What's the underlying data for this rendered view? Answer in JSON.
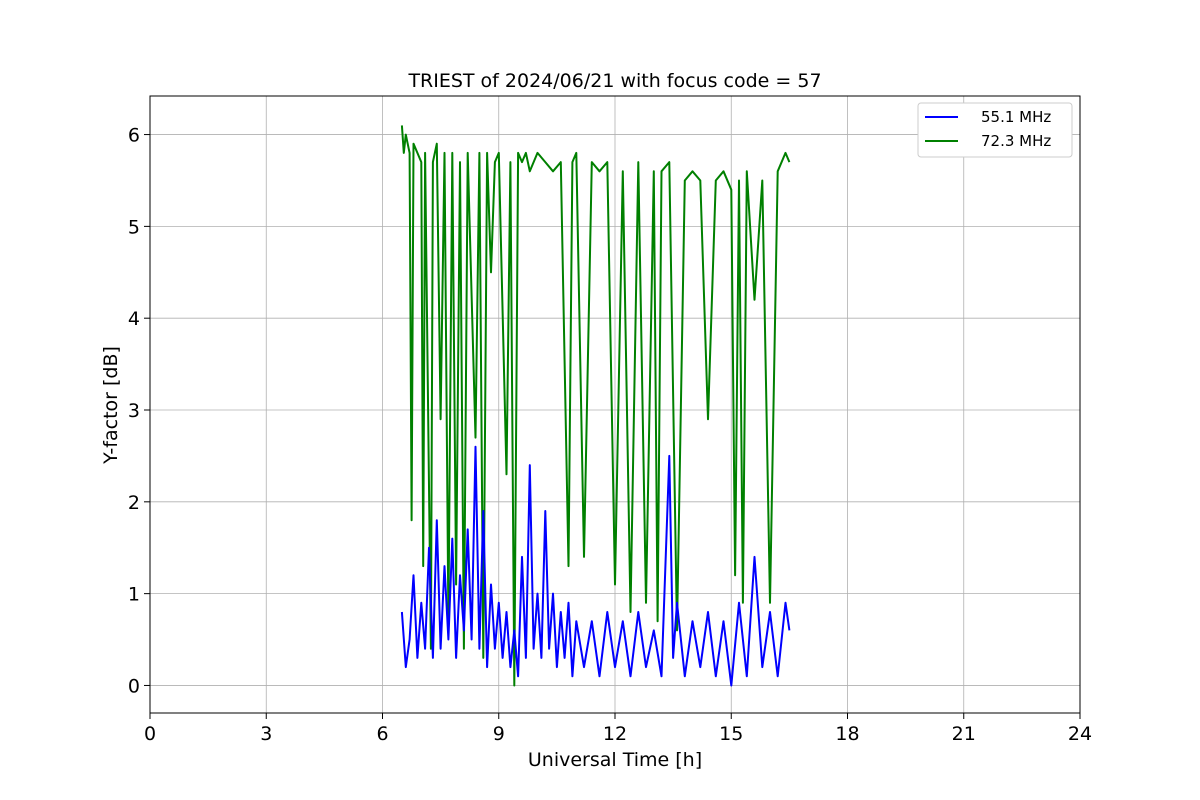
{
  "chart_data": {
    "type": "line",
    "title": "TRIEST of 2024/06/21 with focus code = 57",
    "xlabel": "Universal Time [h]",
    "ylabel": "Y-factor [dB]",
    "xlim": [
      0,
      24
    ],
    "ylim": [
      -0.3,
      6.42
    ],
    "xticks": [
      0,
      3,
      6,
      9,
      12,
      15,
      18,
      21,
      24
    ],
    "yticks": [
      0,
      1,
      2,
      3,
      4,
      5,
      6
    ],
    "grid": true,
    "legend_position": "top-right",
    "series": [
      {
        "name": "55.1 MHz",
        "color": "#0000ff",
        "x": [
          6.5,
          6.6,
          6.7,
          6.8,
          6.9,
          7.0,
          7.1,
          7.2,
          7.3,
          7.4,
          7.5,
          7.6,
          7.7,
          7.8,
          7.9,
          8.0,
          8.1,
          8.2,
          8.3,
          8.4,
          8.5,
          8.6,
          8.7,
          8.8,
          8.9,
          9.0,
          9.1,
          9.2,
          9.3,
          9.4,
          9.5,
          9.6,
          9.7,
          9.8,
          9.9,
          10.0,
          10.1,
          10.2,
          10.3,
          10.4,
          10.5,
          10.6,
          10.7,
          10.8,
          10.9,
          11.0,
          11.2,
          11.4,
          11.6,
          11.8,
          12.0,
          12.2,
          12.4,
          12.6,
          12.8,
          13.0,
          13.2,
          13.4,
          13.5,
          13.6,
          13.8,
          14.0,
          14.2,
          14.4,
          14.6,
          14.8,
          15.0,
          15.2,
          15.4,
          15.6,
          15.8,
          16.0,
          16.2,
          16.4,
          16.5
        ],
        "y": [
          0.8,
          0.2,
          0.5,
          1.2,
          0.3,
          0.9,
          0.4,
          1.5,
          0.3,
          1.8,
          0.4,
          1.3,
          0.5,
          1.6,
          0.3,
          1.2,
          0.6,
          1.7,
          0.5,
          2.6,
          0.4,
          1.9,
          0.2,
          1.1,
          0.4,
          0.9,
          0.3,
          0.8,
          0.2,
          0.6,
          0.1,
          1.4,
          0.3,
          2.4,
          0.4,
          1.0,
          0.3,
          1.9,
          0.4,
          1.0,
          0.2,
          0.8,
          0.3,
          0.9,
          0.1,
          0.7,
          0.2,
          0.7,
          0.1,
          0.8,
          0.2,
          0.7,
          0.1,
          0.8,
          0.2,
          0.6,
          0.1,
          2.5,
          0.3,
          0.9,
          0.1,
          0.7,
          0.2,
          0.8,
          0.1,
          0.7,
          0.0,
          0.9,
          0.1,
          1.4,
          0.2,
          0.8,
          0.1,
          0.9,
          0.6
        ]
      },
      {
        "name": "72.3 MHz",
        "color": "#008000",
        "x": [
          6.5,
          6.55,
          6.6,
          6.7,
          6.75,
          6.8,
          6.9,
          7.0,
          7.05,
          7.1,
          7.25,
          7.3,
          7.4,
          7.5,
          7.6,
          7.7,
          7.8,
          7.9,
          8.0,
          8.1,
          8.2,
          8.4,
          8.5,
          8.6,
          8.7,
          8.8,
          8.9,
          9.0,
          9.2,
          9.3,
          9.4,
          9.5,
          9.6,
          9.7,
          9.8,
          10.0,
          10.2,
          10.4,
          10.6,
          10.8,
          10.9,
          11.0,
          11.2,
          11.4,
          11.6,
          11.8,
          12.0,
          12.2,
          12.4,
          12.6,
          12.8,
          13.0,
          13.1,
          13.2,
          13.4,
          13.6,
          13.8,
          14.0,
          14.2,
          14.4,
          14.6,
          14.8,
          15.0,
          15.1,
          15.2,
          15.3,
          15.4,
          15.6,
          15.8,
          16.0,
          16.2,
          16.4,
          16.5
        ],
        "y": [
          6.1,
          5.8,
          6.0,
          5.8,
          1.8,
          5.9,
          5.8,
          5.7,
          1.3,
          5.8,
          0.4,
          5.7,
          5.9,
          2.9,
          5.8,
          0.7,
          5.8,
          1.1,
          5.7,
          0.4,
          5.8,
          2.7,
          5.8,
          0.3,
          5.8,
          4.5,
          5.7,
          5.8,
          2.3,
          5.7,
          0.0,
          5.8,
          5.7,
          5.8,
          5.6,
          5.8,
          5.7,
          5.6,
          5.7,
          1.3,
          5.7,
          5.8,
          1.4,
          5.7,
          5.6,
          5.7,
          1.1,
          5.6,
          0.8,
          5.7,
          0.9,
          5.6,
          0.7,
          5.6,
          5.7,
          0.6,
          5.5,
          5.6,
          5.5,
          2.9,
          5.5,
          5.6,
          5.4,
          1.2,
          5.5,
          0.9,
          5.6,
          4.2,
          5.5,
          0.9,
          5.6,
          5.8,
          5.7
        ]
      }
    ]
  }
}
